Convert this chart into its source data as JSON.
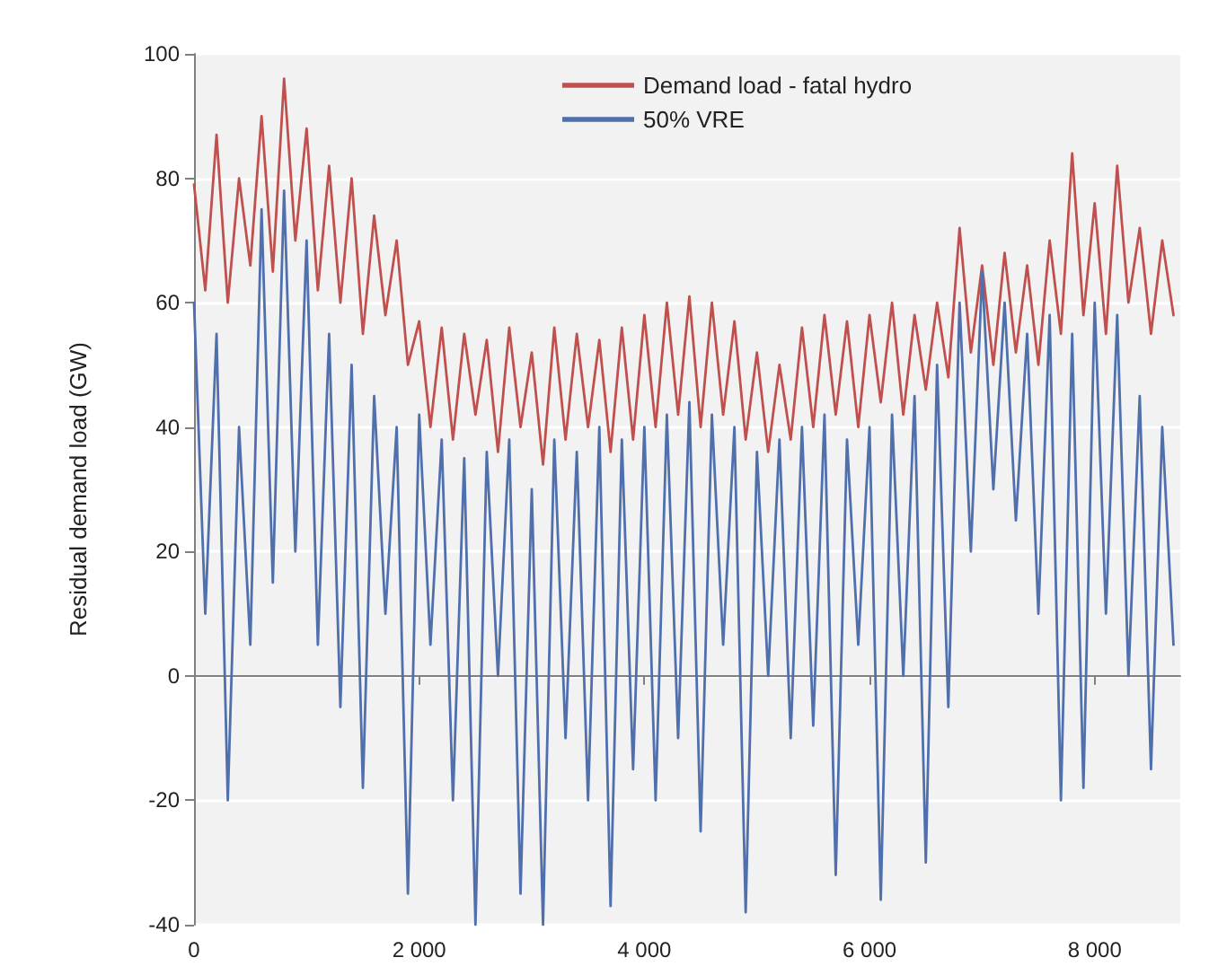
{
  "chart_data": {
    "type": "line",
    "ylabel": "Residual demand load (GW)",
    "xlim": [
      0,
      8760
    ],
    "ylim": [
      -40,
      100
    ],
    "xticks": [
      0,
      {
        "value": 2000,
        "label": "2 000"
      },
      {
        "value": 4000,
        "label": "4 000"
      },
      {
        "value": 6000,
        "label": "6 000"
      },
      {
        "value": 8000,
        "label": "8 000"
      }
    ],
    "yticks": [
      -40,
      -20,
      0,
      20,
      40,
      60,
      80,
      100
    ],
    "grid": "y",
    "legend": "top",
    "marker": "none",
    "line_style": "solid",
    "x": [
      0,
      100,
      200,
      300,
      400,
      500,
      600,
      700,
      800,
      900,
      1000,
      1100,
      1200,
      1300,
      1400,
      1500,
      1600,
      1700,
      1800,
      1900,
      2000,
      2100,
      2200,
      2300,
      2400,
      2500,
      2600,
      2700,
      2800,
      2900,
      3000,
      3100,
      3200,
      3300,
      3400,
      3500,
      3600,
      3700,
      3800,
      3900,
      4000,
      4100,
      4200,
      4300,
      4400,
      4500,
      4600,
      4700,
      4800,
      4900,
      5000,
      5100,
      5200,
      5300,
      5400,
      5500,
      5600,
      5700,
      5800,
      5900,
      6000,
      6100,
      6200,
      6300,
      6400,
      6500,
      6600,
      6700,
      6800,
      6900,
      7000,
      7100,
      7200,
      7300,
      7400,
      7500,
      7600,
      7700,
      7800,
      7900,
      8000,
      8100,
      8200,
      8300,
      8400,
      8500,
      8600,
      8700
    ],
    "series": [
      {
        "name": "Demand load - fatal hydro",
        "color": "#c0504d",
        "values": [
          79,
          62,
          87,
          60,
          80,
          66,
          90,
          65,
          96,
          70,
          88,
          62,
          82,
          60,
          80,
          55,
          74,
          58,
          70,
          50,
          57,
          40,
          56,
          38,
          55,
          42,
          54,
          36,
          56,
          40,
          52,
          34,
          56,
          38,
          55,
          40,
          54,
          36,
          56,
          38,
          58,
          40,
          60,
          42,
          61,
          40,
          60,
          42,
          57,
          38,
          52,
          36,
          50,
          38,
          56,
          40,
          58,
          42,
          57,
          40,
          58,
          44,
          60,
          42,
          58,
          46,
          60,
          48,
          72,
          52,
          66,
          50,
          68,
          52,
          66,
          50,
          70,
          55,
          84,
          58,
          76,
          55,
          82,
          60,
          72,
          55,
          70,
          58
        ]
      },
      {
        "name": "50% VRE",
        "color": "#4f6fad",
        "values": [
          60,
          10,
          55,
          -20,
          40,
          5,
          75,
          15,
          78,
          20,
          70,
          5,
          55,
          -5,
          50,
          -18,
          45,
          10,
          40,
          -35,
          42,
          5,
          38,
          -20,
          35,
          -40,
          36,
          0,
          38,
          -35,
          30,
          -40,
          38,
          -10,
          36,
          -20,
          40,
          -37,
          38,
          -15,
          40,
          -20,
          42,
          -10,
          44,
          -25,
          42,
          5,
          40,
          -38,
          36,
          0,
          38,
          -10,
          40,
          -8,
          42,
          -32,
          38,
          5,
          40,
          -36,
          42,
          0,
          45,
          -30,
          50,
          -5,
          60,
          20,
          65,
          30,
          60,
          25,
          55,
          10,
          58,
          -20,
          55,
          -18,
          60,
          10,
          58,
          0,
          45,
          -15,
          40,
          5
        ]
      }
    ]
  }
}
